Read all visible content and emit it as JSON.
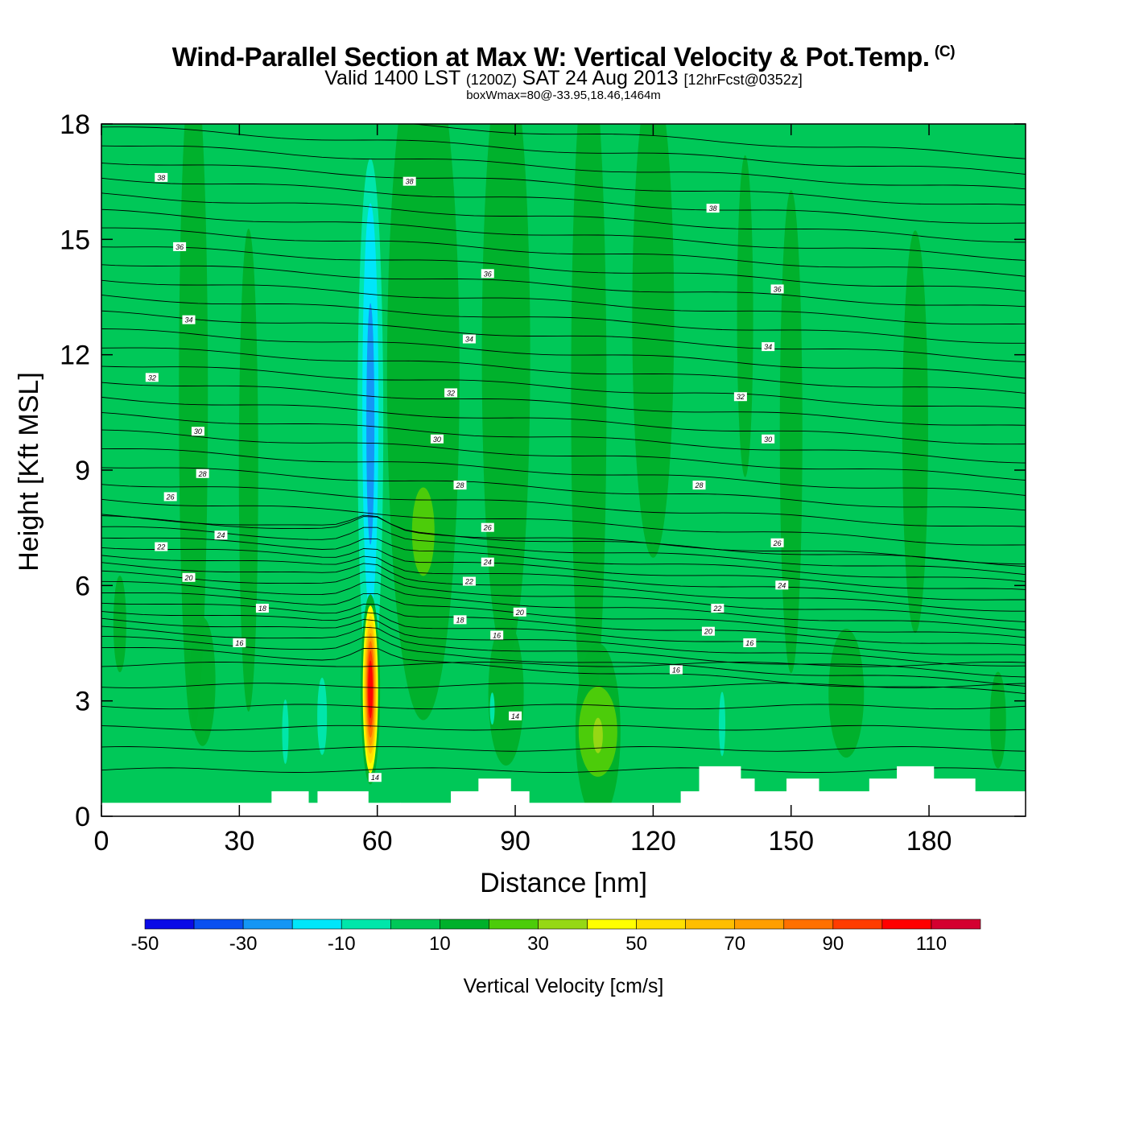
{
  "header": {
    "title": "Wind-Parallel Section at Max W: Vertical Velocity & Pot.Temp.",
    "copyright": "(C)",
    "valid_prefix": "Valid 1400 LST",
    "valid_utc": "(1200Z)",
    "valid_date": "SAT 24 Aug 2013",
    "forecast": "[12hrFcst@0352z]",
    "box_info": "boxWmax=80@-33.95,18.46,1464m"
  },
  "chart_data": {
    "type": "heatmap",
    "title": "Wind-Parallel Section at Max W: Vertical Velocity & Pot.Temp.",
    "xlabel": "Distance [nm]",
    "ylabel": "Height [Kft MSL]",
    "xlim": [
      0,
      201
    ],
    "ylim": [
      0,
      18
    ],
    "xticks": [
      0,
      30,
      60,
      90,
      120,
      150,
      180
    ],
    "xtick_labels": [
      "0",
      "30",
      "60",
      "90",
      "120",
      "150",
      "180"
    ],
    "yticks": [
      0,
      3,
      6,
      9,
      12,
      15,
      18
    ],
    "ytick_labels": [
      "0",
      "3",
      "6",
      "9",
      "12",
      "15",
      "18"
    ],
    "background_value": 0,
    "features": [
      {
        "name": "updraft-core",
        "x": 58.5,
        "y": 3.3,
        "peak": 110,
        "width_nm": 3.5,
        "height_kft": 4.8
      },
      {
        "name": "downdraft-column",
        "x": 58.5,
        "y": 9.5,
        "peak": -30,
        "width_nm": 5,
        "height_kft": 11
      },
      {
        "name": "positive-band-1",
        "x": 20,
        "y": 9,
        "peak": 10
      },
      {
        "name": "positive-band-2",
        "x": 70,
        "y": 11,
        "peak": 10
      },
      {
        "name": "positive-band-3",
        "x": 105,
        "y": 12,
        "peak": 10
      },
      {
        "name": "weak-updraft-area",
        "x": 108,
        "y": 2.1,
        "peak": 30
      }
    ],
    "colorbar": {
      "label": "Vertical Velocity [cm/s]",
      "bounds": [
        -50,
        -40,
        -30,
        -20,
        -10,
        0,
        10,
        20,
        30,
        40,
        50,
        60,
        70,
        80,
        90,
        100,
        110,
        120
      ],
      "tick_labels": [
        "-50",
        "-30",
        "-10",
        "10",
        "30",
        "50",
        "70",
        "90",
        "110"
      ],
      "tick_values": [
        -50,
        -30,
        -10,
        10,
        30,
        50,
        70,
        90,
        110
      ],
      "colors": [
        "#0a0ae6",
        "#0a50f0",
        "#1496f5",
        "#00e6fa",
        "#00e6aa",
        "#00c858",
        "#00b02a",
        "#4ccc0a",
        "#96d814",
        "#ffff00",
        "#ffe000",
        "#ffbe00",
        "#ff9e00",
        "#ff7000",
        "#ff3c00",
        "#ff0000",
        "#d40030"
      ]
    },
    "theta_contours": {
      "interval_C": 1,
      "labels": [
        {
          "text": "38",
          "x": 13,
          "y": 16.6
        },
        {
          "text": "38",
          "x": 67,
          "y": 16.5
        },
        {
          "text": "38",
          "x": 133,
          "y": 15.8
        },
        {
          "text": "36",
          "x": 17,
          "y": 14.8
        },
        {
          "text": "36",
          "x": 84,
          "y": 14.1
        },
        {
          "text": "36",
          "x": 147,
          "y": 13.7
        },
        {
          "text": "34",
          "x": 19,
          "y": 12.9
        },
        {
          "text": "34",
          "x": 80,
          "y": 12.4
        },
        {
          "text": "34",
          "x": 145,
          "y": 12.2
        },
        {
          "text": "32",
          "x": 11,
          "y": 11.4
        },
        {
          "text": "32",
          "x": 76,
          "y": 11
        },
        {
          "text": "32",
          "x": 139,
          "y": 10.9
        },
        {
          "text": "30",
          "x": 21,
          "y": 10
        },
        {
          "text": "30",
          "x": 73,
          "y": 9.8
        },
        {
          "text": "30",
          "x": 145,
          "y": 9.8
        },
        {
          "text": "28",
          "x": 22,
          "y": 8.9
        },
        {
          "text": "28",
          "x": 78,
          "y": 8.6
        },
        {
          "text": "28",
          "x": 130,
          "y": 8.6
        },
        {
          "text": "26",
          "x": 15,
          "y": 8.3
        },
        {
          "text": "26",
          "x": 84,
          "y": 7.5
        },
        {
          "text": "26",
          "x": 147,
          "y": 7.1
        },
        {
          "text": "24",
          "x": 26,
          "y": 7.3
        },
        {
          "text": "24",
          "x": 84,
          "y": 6.6
        },
        {
          "text": "24",
          "x": 148,
          "y": 6
        },
        {
          "text": "22",
          "x": 13,
          "y": 7
        },
        {
          "text": "22",
          "x": 80,
          "y": 6.1
        },
        {
          "text": "22",
          "x": 134,
          "y": 5.4
        },
        {
          "text": "20",
          "x": 19,
          "y": 6.2
        },
        {
          "text": "20",
          "x": 91,
          "y": 5.3
        },
        {
          "text": "20",
          "x": 132,
          "y": 4.8
        },
        {
          "text": "18",
          "x": 35,
          "y": 5.4
        },
        {
          "text": "18",
          "x": 78,
          "y": 5.1
        },
        {
          "text": "16",
          "x": 30,
          "y": 4.5
        },
        {
          "text": "16",
          "x": 86,
          "y": 4.7
        },
        {
          "text": "16",
          "x": 125,
          "y": 3.8
        },
        {
          "text": "16",
          "x": 141,
          "y": 4.5
        },
        {
          "text": "14",
          "x": 90,
          "y": 2.6
        },
        {
          "text": "14",
          "x": 59.5,
          "y": 1
        }
      ]
    },
    "terrain": [
      {
        "x0": 0,
        "x1": 37,
        "top": 0.35
      },
      {
        "x0": 37,
        "x1": 45,
        "top": 0.65
      },
      {
        "x0": 45,
        "x1": 47,
        "top": 0.35
      },
      {
        "x0": 47,
        "x1": 58,
        "top": 0.65
      },
      {
        "x0": 58,
        "x1": 65,
        "top": 0.35
      },
      {
        "x0": 65,
        "x1": 76,
        "top": 0.35
      },
      {
        "x0": 76,
        "x1": 82,
        "top": 0.65
      },
      {
        "x0": 82,
        "x1": 89,
        "top": 0.98
      },
      {
        "x0": 89,
        "x1": 93,
        "top": 0.65
      },
      {
        "x0": 93,
        "x1": 126,
        "top": 0.35
      },
      {
        "x0": 126,
        "x1": 130,
        "top": 0.65
      },
      {
        "x0": 130,
        "x1": 139,
        "top": 1.3
      },
      {
        "x0": 139,
        "x1": 142,
        "top": 0.98
      },
      {
        "x0": 142,
        "x1": 149,
        "top": 0.65
      },
      {
        "x0": 149,
        "x1": 156,
        "top": 0.98
      },
      {
        "x0": 156,
        "x1": 167,
        "top": 0.65
      },
      {
        "x0": 167,
        "x1": 173,
        "top": 0.98
      },
      {
        "x0": 173,
        "x1": 181,
        "top": 1.3
      },
      {
        "x0": 181,
        "x1": 190,
        "top": 0.98
      },
      {
        "x0": 190,
        "x1": 201,
        "top": 0.65
      }
    ]
  }
}
